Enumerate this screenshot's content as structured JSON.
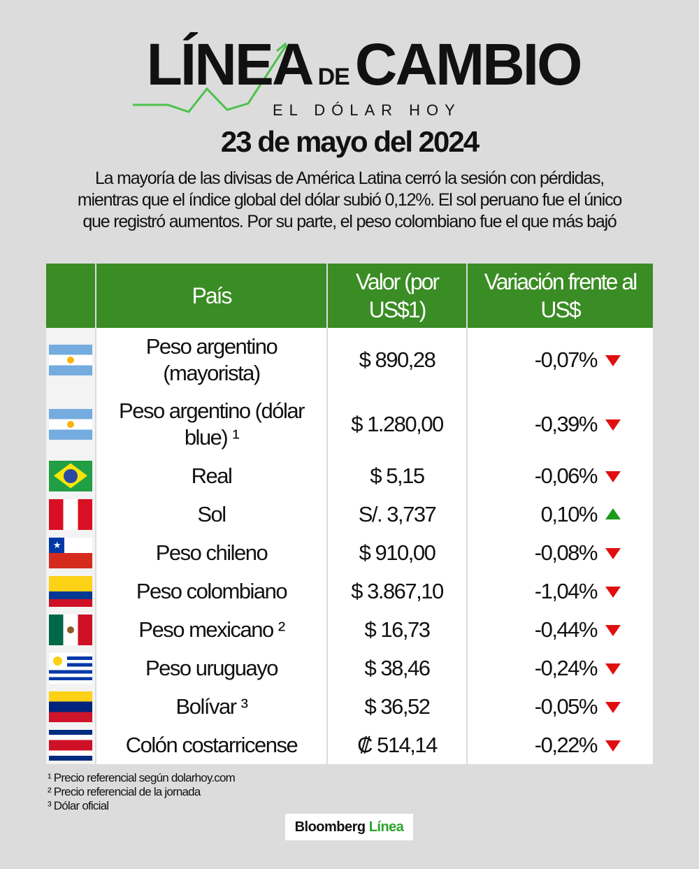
{
  "header": {
    "logo_left": "LÍNEA",
    "logo_de": "DE",
    "logo_right": "CAMBIO",
    "logo_sub": "EL DÓLAR HOY",
    "date": "23 de mayo del 2024",
    "intro": "La mayoría de las divisas de América Latina cerró la sesión con pérdidas, mientras que el índice global del dólar subió 0,12%. El sol peruano fue el único que registró aumentos. Por su parte, el peso colombiano fue el que más bajó"
  },
  "colors": {
    "header_green": "#3a8c24",
    "down": "#e01010",
    "up": "#1c9a1c",
    "background": "#dcdcdc"
  },
  "table": {
    "headers": [
      "País",
      "Valor (por US$1)",
      "Variación frente al US$"
    ],
    "rows": [
      {
        "flag": "ar",
        "country": "Peso argentino (mayorista)",
        "value": "$ 890,28",
        "change": "-0,07%",
        "direction": "down",
        "tall": true
      },
      {
        "flag": "ar",
        "country": "Peso argentino (dólar blue) ¹",
        "value": "$ 1.280,00",
        "change": "-0,39%",
        "direction": "down",
        "tall": true
      },
      {
        "flag": "br",
        "country": "Real",
        "value": "$ 5,15",
        "change": "-0,06%",
        "direction": "down"
      },
      {
        "flag": "pe",
        "country": "Sol",
        "value": "S/. 3,737",
        "change": "0,10%",
        "direction": "up"
      },
      {
        "flag": "cl",
        "country": "Peso chileno",
        "value": "$ 910,00",
        "change": "-0,08%",
        "direction": "down"
      },
      {
        "flag": "co",
        "country": "Peso colombiano",
        "value": "$ 3.867,10",
        "change": "-1,04%",
        "direction": "down"
      },
      {
        "flag": "mx",
        "country": "Peso mexicano ²",
        "value": "$ 16,73",
        "change": "-0,44%",
        "direction": "down"
      },
      {
        "flag": "uy",
        "country": "Peso uruguayo",
        "value": "$ 38,46",
        "change": "-0,24%",
        "direction": "down"
      },
      {
        "flag": "ve",
        "country": "Bolívar ³",
        "value": "$ 36,52",
        "change": "-0,05%",
        "direction": "down"
      },
      {
        "flag": "cr",
        "country": "Colón costarricense",
        "value": "₡ 514,14",
        "change": "-0,22%",
        "direction": "down"
      }
    ]
  },
  "footnotes": [
    "¹ Precio referencial según dolarhoy.com",
    "² Precio referencial de la jornada",
    "³ Dólar oficial"
  ],
  "brand": {
    "name": "Bloomberg",
    "accent": "Línea"
  }
}
